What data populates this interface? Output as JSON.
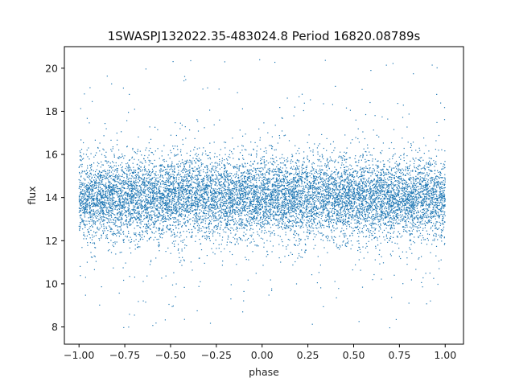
{
  "chart_data": {
    "type": "scatter",
    "title": "1SWASPJ132022.35-483024.8 Period 16820.08789s",
    "xlabel": "phase",
    "ylabel": "flux",
    "xlim": [
      -1.08,
      1.1
    ],
    "ylim": [
      7.2,
      21.0
    ],
    "xticks": [
      -1.0,
      -0.75,
      -0.5,
      -0.25,
      0.0,
      0.25,
      0.5,
      0.75,
      1.0
    ],
    "xtick_labels": [
      "−1.00",
      "−0.75",
      "−0.50",
      "−0.25",
      "0.00",
      "0.25",
      "0.50",
      "0.75",
      "1.00"
    ],
    "yticks": [
      8,
      10,
      12,
      14,
      16,
      18,
      20
    ],
    "ytick_labels": [
      "8",
      "10",
      "12",
      "14",
      "16",
      "18",
      "20"
    ],
    "grid": false,
    "legend": "none",
    "series": [
      {
        "color": "#1f77b4",
        "x_range": [
          -1.0,
          1.0
        ],
        "y_range": [
          7.8,
          20.4
        ],
        "y_center": 14.0,
        "y_core_band": [
          12.5,
          15.5
        ],
        "marker": "tiny point"
      }
    ]
  }
}
